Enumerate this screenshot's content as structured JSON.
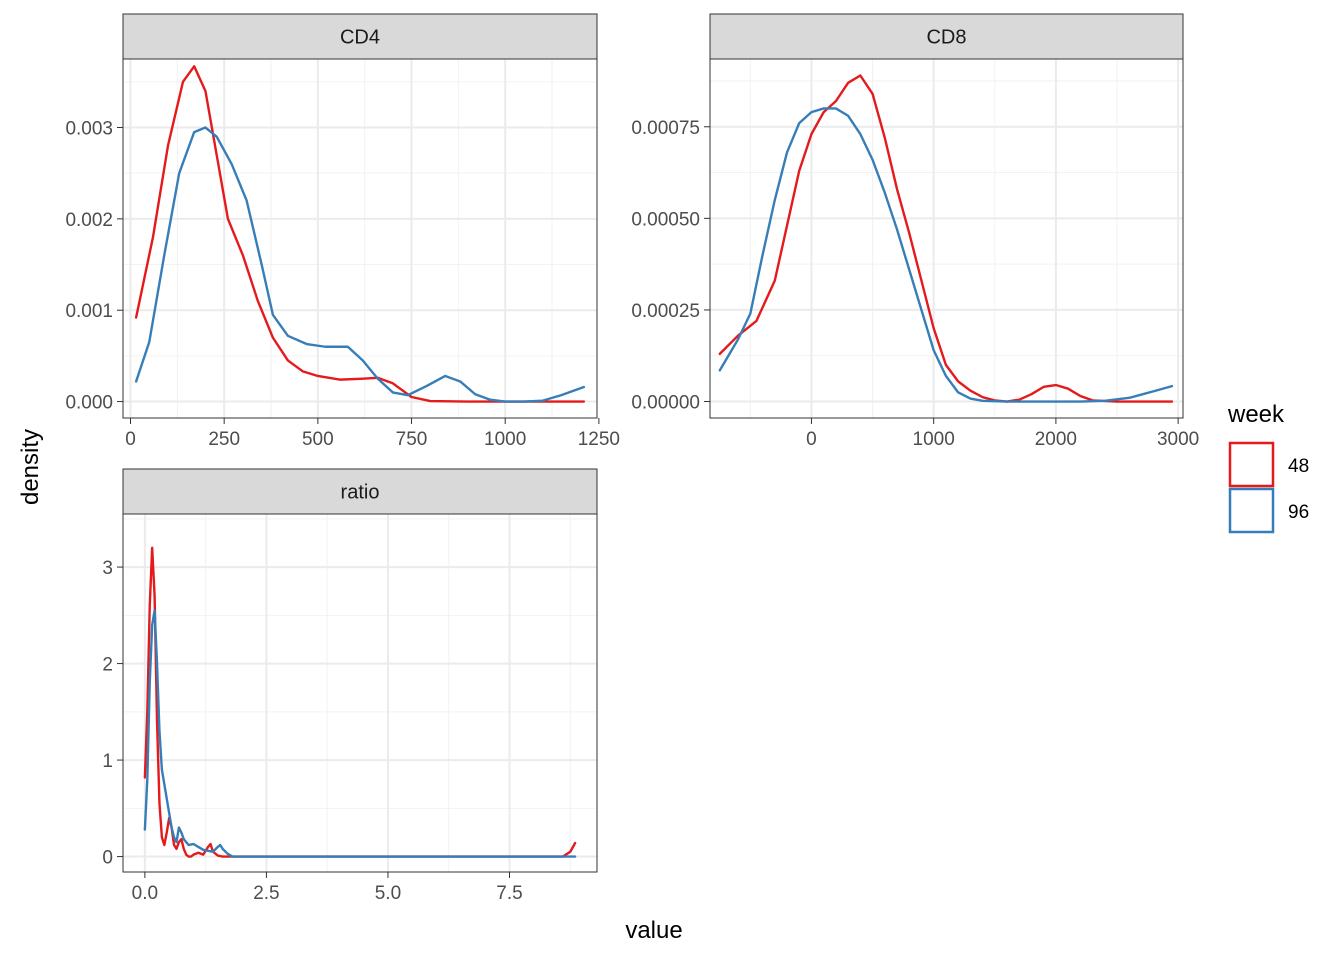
{
  "chart_data": {
    "type": "line",
    "subtype": "faceted density",
    "xlabel": "value",
    "ylabel": "density",
    "legend": {
      "title": "week",
      "placement": "right",
      "entries": [
        {
          "label": "48",
          "color": "#E41A1C"
        },
        {
          "label": "96",
          "color": "#377EB8"
        }
      ]
    },
    "grid": true,
    "panels": [
      {
        "title": "CD4",
        "xlim": [
          -20,
          1245
        ],
        "ylim": [
          -0.00018,
          0.00375
        ],
        "xticks": [
          {
            "value": 0,
            "label": "0"
          },
          {
            "value": 250,
            "label": "250"
          },
          {
            "value": 500,
            "label": "500"
          },
          {
            "value": 750,
            "label": "750"
          },
          {
            "value": 1000,
            "label": "1000"
          },
          {
            "value": 1250,
            "label": "1250"
          }
        ],
        "yticks": [
          {
            "value": 0,
            "label": "0.000"
          },
          {
            "value": 0.001,
            "label": "0.001"
          },
          {
            "value": 0.002,
            "label": "0.002"
          },
          {
            "value": 0.003,
            "label": "0.003"
          }
        ],
        "series": [
          {
            "name": "48",
            "color": "#E41A1C",
            "x": [
              15,
              60,
              100,
              140,
              170,
              200,
              230,
              260,
              300,
              340,
              380,
              420,
              460,
              500,
              560,
              620,
              660,
              700,
              750,
              800,
              900,
              1000,
              1100,
              1210
            ],
            "y": [
              0.00092,
              0.0018,
              0.0028,
              0.0035,
              0.00367,
              0.0034,
              0.0027,
              0.002,
              0.0016,
              0.0011,
              0.0007,
              0.00045,
              0.00033,
              0.00028,
              0.00024,
              0.00025,
              0.00026,
              0.0002,
              5e-05,
              5e-06,
              0.0,
              0.0,
              0.0,
              0.0
            ]
          },
          {
            "name": "96",
            "color": "#377EB8",
            "x": [
              15,
              50,
              90,
              130,
              170,
              200,
              230,
              270,
              310,
              350,
              380,
              420,
              470,
              520,
              580,
              620,
              660,
              700,
              740,
              790,
              840,
              880,
              920,
              960,
              1000,
              1050,
              1100,
              1150,
              1210
            ],
            "y": [
              0.00022,
              0.00065,
              0.0016,
              0.0025,
              0.00295,
              0.003,
              0.0029,
              0.0026,
              0.0022,
              0.0015,
              0.00095,
              0.00072,
              0.00063,
              0.0006,
              0.0006,
              0.00045,
              0.00025,
              0.0001,
              7e-05,
              0.00017,
              0.00028,
              0.00022,
              8e-05,
              2e-05,
              0.0,
              0.0,
              1e-05,
              7e-05,
              0.00016
            ]
          }
        ]
      },
      {
        "title": "CD8",
        "xlim": [
          -830,
          3040
        ],
        "ylim": [
          -4.5e-05,
          0.000935
        ],
        "xticks": [
          {
            "value": 0,
            "label": "0"
          },
          {
            "value": 1000,
            "label": "1000"
          },
          {
            "value": 2000,
            "label": "2000"
          },
          {
            "value": 3000,
            "label": "3000"
          }
        ],
        "yticks": [
          {
            "value": 0,
            "label": "0.00000"
          },
          {
            "value": 0.00025,
            "label": "0.00025"
          },
          {
            "value": 0.0005,
            "label": "0.00050"
          },
          {
            "value": 0.00075,
            "label": "0.00075"
          }
        ],
        "series": [
          {
            "name": "48",
            "color": "#E41A1C",
            "x": [
              -750,
              -600,
              -450,
              -300,
              -200,
              -100,
              0,
              100,
              200,
              300,
              400,
              500,
              600,
              700,
              800,
              900,
              1000,
              1100,
              1200,
              1300,
              1400,
              1500,
              1600,
              1700,
              1800,
              1900,
              2000,
              2100,
              2200,
              2300,
              2500,
              2700,
              2950
            ],
            "y": [
              0.00013,
              0.00018,
              0.00022,
              0.00033,
              0.00048,
              0.00063,
              0.00073,
              0.00079,
              0.00082,
              0.00087,
              0.00089,
              0.00084,
              0.00072,
              0.00058,
              0.00046,
              0.00033,
              0.0002,
              0.0001,
              5.5e-05,
              3e-05,
              1.2e-05,
              3e-06,
              0.0,
              5e-06,
              2e-05,
              4e-05,
              4.5e-05,
              3.5e-05,
              1.5e-05,
              3e-06,
              0.0,
              0.0,
              0.0
            ]
          },
          {
            "name": "96",
            "color": "#377EB8",
            "x": [
              -750,
              -600,
              -500,
              -400,
              -300,
              -200,
              -100,
              0,
              100,
              200,
              300,
              400,
              500,
              600,
              700,
              800,
              900,
              1000,
              1100,
              1200,
              1300,
              1400,
              1600,
              1800,
              2000,
              2200,
              2400,
              2600,
              2800,
              2950
            ],
            "y": [
              8.5e-05,
              0.00017,
              0.00024,
              0.0004,
              0.00055,
              0.00068,
              0.00076,
              0.00079,
              0.0008,
              0.0008,
              0.00078,
              0.00073,
              0.00066,
              0.00057,
              0.00047,
              0.00036,
              0.00025,
              0.00014,
              7e-05,
              2.5e-05,
              8e-06,
              2e-06,
              0.0,
              0.0,
              0.0,
              0.0,
              2e-06,
              1e-05,
              2.8e-05,
              4.2e-05
            ]
          }
        ]
      },
      {
        "title": "ratio",
        "xlim": [
          -0.45,
          9.3
        ],
        "ylim": [
          -0.16,
          3.55
        ],
        "xticks": [
          {
            "value": 0,
            "label": "0.0"
          },
          {
            "value": 2.5,
            "label": "2.5"
          },
          {
            "value": 5,
            "label": "5.0"
          },
          {
            "value": 7.5,
            "label": "7.5"
          }
        ],
        "yticks": [
          {
            "value": 0,
            "label": "0"
          },
          {
            "value": 1,
            "label": "1"
          },
          {
            "value": 2,
            "label": "2"
          },
          {
            "value": 3,
            "label": "3"
          }
        ],
        "series": [
          {
            "name": "48",
            "color": "#E41A1C",
            "x": [
              0.0,
              0.05,
              0.1,
              0.15,
              0.2,
              0.25,
              0.3,
              0.35,
              0.4,
              0.45,
              0.5,
              0.55,
              0.6,
              0.65,
              0.7,
              0.75,
              0.8,
              0.85,
              0.9,
              0.95,
              1.0,
              1.1,
              1.2,
              1.3,
              1.35,
              1.4,
              1.5,
              1.6,
              1.8,
              3.0,
              5.0,
              7.0,
              8.6,
              8.75,
              8.85
            ],
            "y": [
              0.82,
              1.5,
              2.6,
              3.2,
              2.7,
              1.4,
              0.55,
              0.2,
              0.12,
              0.25,
              0.4,
              0.3,
              0.12,
              0.08,
              0.15,
              0.18,
              0.08,
              0.02,
              0.0,
              0.0,
              0.02,
              0.04,
              0.02,
              0.1,
              0.13,
              0.05,
              0.01,
              0.0,
              0.0,
              0.0,
              0.0,
              0.0,
              0.0,
              0.05,
              0.14
            ]
          },
          {
            "name": "96",
            "color": "#377EB8",
            "x": [
              0.0,
              0.05,
              0.1,
              0.15,
              0.2,
              0.25,
              0.3,
              0.35,
              0.4,
              0.45,
              0.5,
              0.55,
              0.6,
              0.65,
              0.7,
              0.75,
              0.8,
              0.9,
              1.0,
              1.1,
              1.2,
              1.3,
              1.4,
              1.5,
              1.55,
              1.6,
              1.7,
              1.8,
              2.0,
              4.0,
              6.0,
              8.0,
              8.85
            ],
            "y": [
              0.28,
              0.8,
              1.8,
              2.4,
              2.55,
              2.0,
              1.3,
              0.9,
              0.75,
              0.6,
              0.45,
              0.3,
              0.2,
              0.15,
              0.3,
              0.25,
              0.18,
              0.12,
              0.13,
              0.1,
              0.07,
              0.06,
              0.05,
              0.1,
              0.12,
              0.08,
              0.03,
              0.0,
              0.0,
              0.0,
              0.0,
              0.0,
              0.0
            ]
          }
        ]
      }
    ]
  }
}
